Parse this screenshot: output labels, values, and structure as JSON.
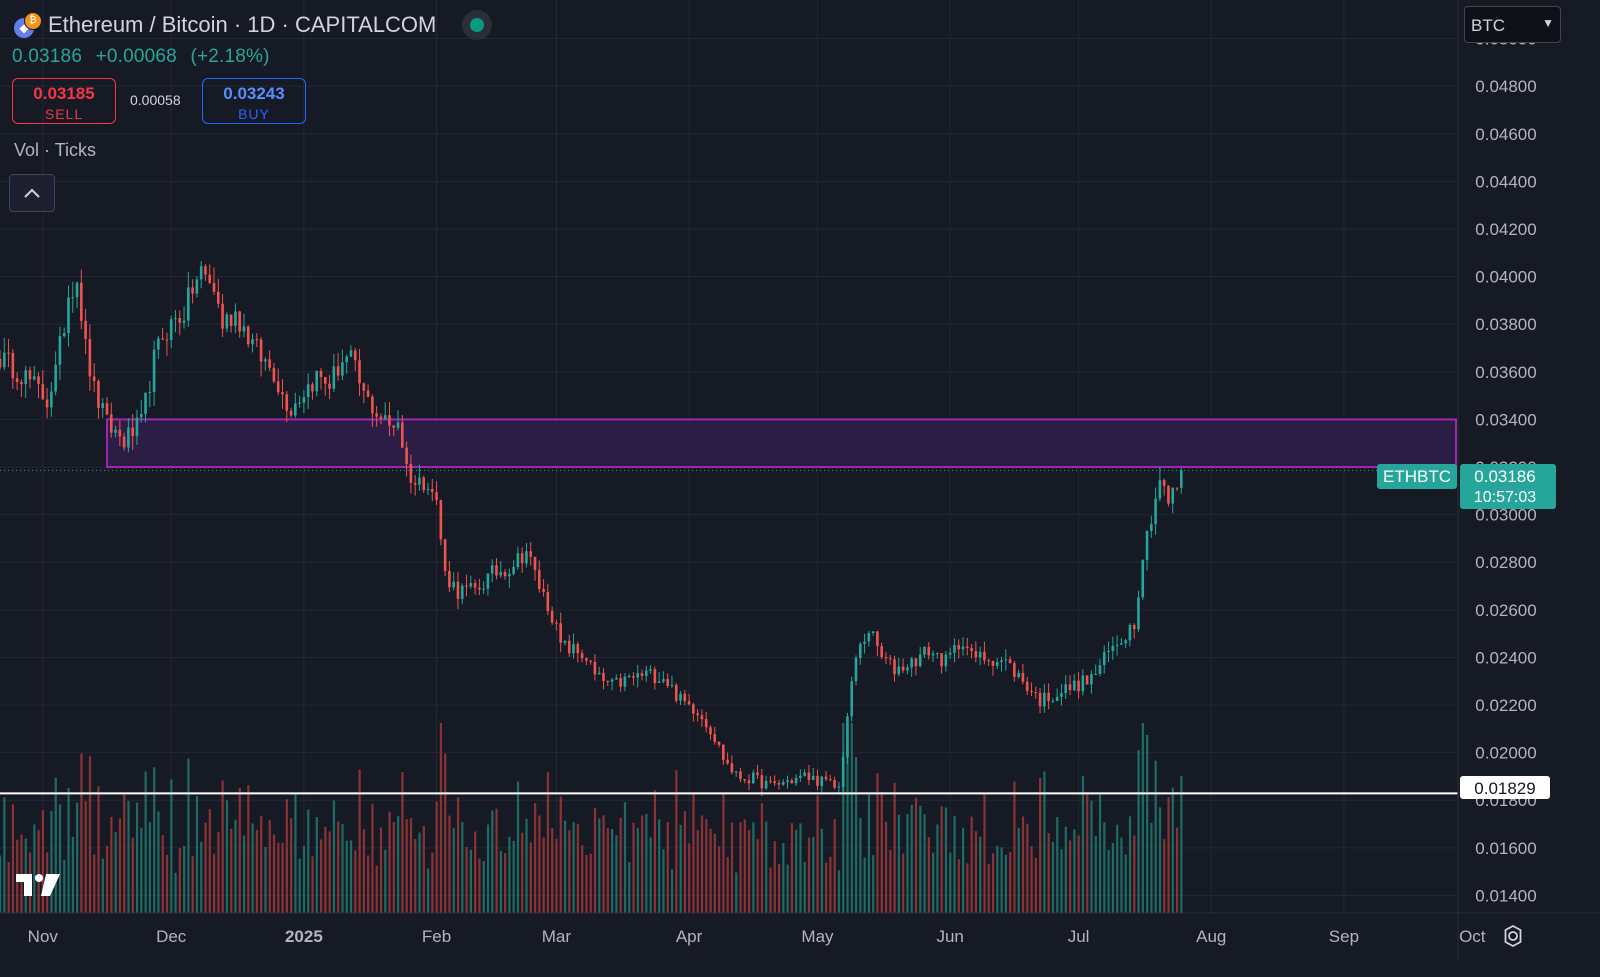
{
  "header": {
    "title": "Ethereum / Bitcoin · 1D · CAPITALCOM",
    "last_price": "0.03186",
    "change": "+0.00068",
    "change_pct": "(+2.18%)",
    "status_icon": "market-open-dot-icon"
  },
  "trade": {
    "sell_price": "0.03185",
    "sell_label": "SELL",
    "spread": "0.00058",
    "buy_price": "0.03243",
    "buy_label": "BUY"
  },
  "indicators": {
    "volume_label": "Vol · Ticks"
  },
  "currency_selector": {
    "value": "BTC"
  },
  "price_tag": {
    "symbol": "ETHBTC",
    "price": "0.03186",
    "countdown": "10:57:03"
  },
  "support_tag": {
    "price": "0.01829"
  },
  "colors": {
    "background": "#161a25",
    "up": "#26a69a",
    "down": "#ef5350",
    "volume_up": "#1e6b64",
    "volume_down": "#8c3235",
    "zone_fill": "#2d1d46",
    "zone_border": "#9c27b0",
    "grid": "#232733",
    "axis_text": "#b2b5be",
    "support_line": "#ffffff"
  },
  "chart_data": {
    "type": "candlestick",
    "symbol": "ETHBTC",
    "interval": "1D",
    "start_date": "2024-10-22",
    "end_date": "2025-07-25",
    "x_axis_end": "2025-10-20",
    "y_range": [
      0.0128,
      0.0512
    ],
    "y_ticks": [
      "0.05000",
      "0.04800",
      "0.04600",
      "0.04400",
      "0.04200",
      "0.04000",
      "0.03800",
      "0.03600",
      "0.03400",
      "0.03200",
      "0.03000",
      "0.02800",
      "0.02600",
      "0.02400",
      "0.02200",
      "0.02000",
      "0.01800",
      "0.01600",
      "0.01400"
    ],
    "x_ticks": [
      {
        "label": "Nov",
        "date": "2024-11-01"
      },
      {
        "label": "Dec",
        "date": "2024-12-01"
      },
      {
        "label": "2025",
        "date": "2025-01-01",
        "bold": true
      },
      {
        "label": "Feb",
        "date": "2025-02-01"
      },
      {
        "label": "Mar",
        "date": "2025-03-01"
      },
      {
        "label": "Apr",
        "date": "2025-04-01"
      },
      {
        "label": "May",
        "date": "2025-05-01"
      },
      {
        "label": "Jun",
        "date": "2025-06-01"
      },
      {
        "label": "Jul",
        "date": "2025-07-01"
      },
      {
        "label": "Aug",
        "date": "2025-08-01"
      },
      {
        "label": "Sep",
        "date": "2025-09-01"
      },
      {
        "label": "Oct",
        "date": "2025-10-01"
      }
    ],
    "close_anchors": [
      [
        "2024-10-22",
        0.0366
      ],
      [
        "2024-10-28",
        0.0358
      ],
      [
        "2024-11-02",
        0.0348
      ],
      [
        "2024-11-04",
        0.036
      ],
      [
        "2024-11-06",
        0.038
      ],
      [
        "2024-11-07",
        0.0393
      ],
      [
        "2024-11-09",
        0.04
      ],
      [
        "2024-11-11",
        0.037
      ],
      [
        "2024-11-13",
        0.0352
      ],
      [
        "2024-11-16",
        0.0338
      ],
      [
        "2024-11-20",
        0.0331
      ],
      [
        "2024-11-24",
        0.0338
      ],
      [
        "2024-11-27",
        0.0365
      ],
      [
        "2024-11-29",
        0.0375
      ],
      [
        "2024-12-01",
        0.038
      ],
      [
        "2024-12-04",
        0.0385
      ],
      [
        "2024-12-06",
        0.0395
      ],
      [
        "2024-12-08",
        0.0402
      ],
      [
        "2024-12-11",
        0.0395
      ],
      [
        "2024-12-13",
        0.038
      ],
      [
        "2024-12-16",
        0.0385
      ],
      [
        "2024-12-19",
        0.0375
      ],
      [
        "2024-12-22",
        0.0366
      ],
      [
        "2024-12-25",
        0.036
      ],
      [
        "2024-12-27",
        0.035
      ],
      [
        "2024-12-29",
        0.0345
      ],
      [
        "2025-01-01",
        0.0352
      ],
      [
        "2025-01-04",
        0.0358
      ],
      [
        "2025-01-07",
        0.0355
      ],
      [
        "2025-01-10",
        0.0365
      ],
      [
        "2025-01-12",
        0.0365
      ],
      [
        "2025-01-15",
        0.035
      ],
      [
        "2025-01-18",
        0.0343
      ],
      [
        "2025-01-21",
        0.0337
      ],
      [
        "2025-01-23",
        0.034
      ],
      [
        "2025-01-25",
        0.032
      ],
      [
        "2025-01-27",
        0.0313
      ],
      [
        "2025-01-30",
        0.0315
      ],
      [
        "2025-02-01",
        0.0305
      ],
      [
        "2025-02-03",
        0.0275
      ],
      [
        "2025-02-06",
        0.0268
      ],
      [
        "2025-02-10",
        0.0268
      ],
      [
        "2025-02-14",
        0.0275
      ],
      [
        "2025-02-18",
        0.0278
      ],
      [
        "2025-02-22",
        0.0285
      ],
      [
        "2025-02-25",
        0.027
      ],
      [
        "2025-02-28",
        0.0258
      ],
      [
        "2025-03-02",
        0.0245
      ],
      [
        "2025-03-05",
        0.0243
      ],
      [
        "2025-03-08",
        0.024
      ],
      [
        "2025-03-10",
        0.0232
      ],
      [
        "2025-03-14",
        0.0228
      ],
      [
        "2025-03-18",
        0.0231
      ],
      [
        "2025-03-22",
        0.0233
      ],
      [
        "2025-03-26",
        0.0232
      ],
      [
        "2025-03-30",
        0.0222
      ],
      [
        "2025-04-03",
        0.0218
      ],
      [
        "2025-04-06",
        0.021
      ],
      [
        "2025-04-09",
        0.0198
      ],
      [
        "2025-04-12",
        0.019
      ],
      [
        "2025-04-16",
        0.0189
      ],
      [
        "2025-04-20",
        0.0186
      ],
      [
        "2025-04-24",
        0.0188
      ],
      [
        "2025-04-28",
        0.019
      ],
      [
        "2025-05-02",
        0.0188
      ],
      [
        "2025-05-06",
        0.0185
      ],
      [
        "2025-05-08",
        0.0215
      ],
      [
        "2025-05-10",
        0.024
      ],
      [
        "2025-05-13",
        0.0252
      ],
      [
        "2025-05-16",
        0.024
      ],
      [
        "2025-05-19",
        0.0235
      ],
      [
        "2025-05-23",
        0.0238
      ],
      [
        "2025-05-27",
        0.0243
      ],
      [
        "2025-05-31",
        0.0238
      ],
      [
        "2025-06-04",
        0.0248
      ],
      [
        "2025-06-06",
        0.024
      ],
      [
        "2025-06-10",
        0.024
      ],
      [
        "2025-06-14",
        0.0238
      ],
      [
        "2025-06-18",
        0.023
      ],
      [
        "2025-06-22",
        0.0222
      ],
      [
        "2025-06-26",
        0.0225
      ],
      [
        "2025-06-30",
        0.0228
      ],
      [
        "2025-07-04",
        0.0231
      ],
      [
        "2025-07-08",
        0.0242
      ],
      [
        "2025-07-11",
        0.0248
      ],
      [
        "2025-07-14",
        0.0255
      ],
      [
        "2025-07-16",
        0.0283
      ],
      [
        "2025-07-18",
        0.03
      ],
      [
        "2025-07-20",
        0.0315
      ],
      [
        "2025-07-22",
        0.0305
      ],
      [
        "2025-07-24",
        0.0312
      ],
      [
        "2025-07-25",
        0.03186
      ]
    ],
    "volume_range_max": 160000,
    "resistance_zone": {
      "start_date": "2024-11-16",
      "end_date": "2025-10-20",
      "low": 0.032,
      "high": 0.034
    },
    "support_level": 0.01829,
    "last_price_line": 0.03186
  }
}
